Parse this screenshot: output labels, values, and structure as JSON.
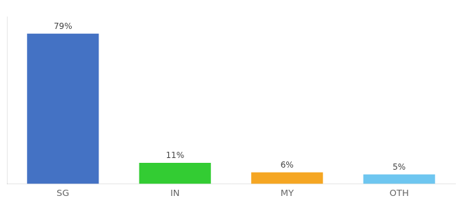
{
  "chart_data": {
    "type": "bar",
    "categories": [
      "SG",
      "IN",
      "MY",
      "OTH"
    ],
    "values": [
      79,
      11,
      6,
      5
    ],
    "value_labels": [
      "79%",
      "11%",
      "6%",
      "5%"
    ],
    "data_labels": true,
    "colors": [
      "#4472c4",
      "#33cc33",
      "#f5a623",
      "#6ec6f0"
    ],
    "ylim": [
      0,
      88
    ],
    "grid": false,
    "tick_labels": "x"
  }
}
